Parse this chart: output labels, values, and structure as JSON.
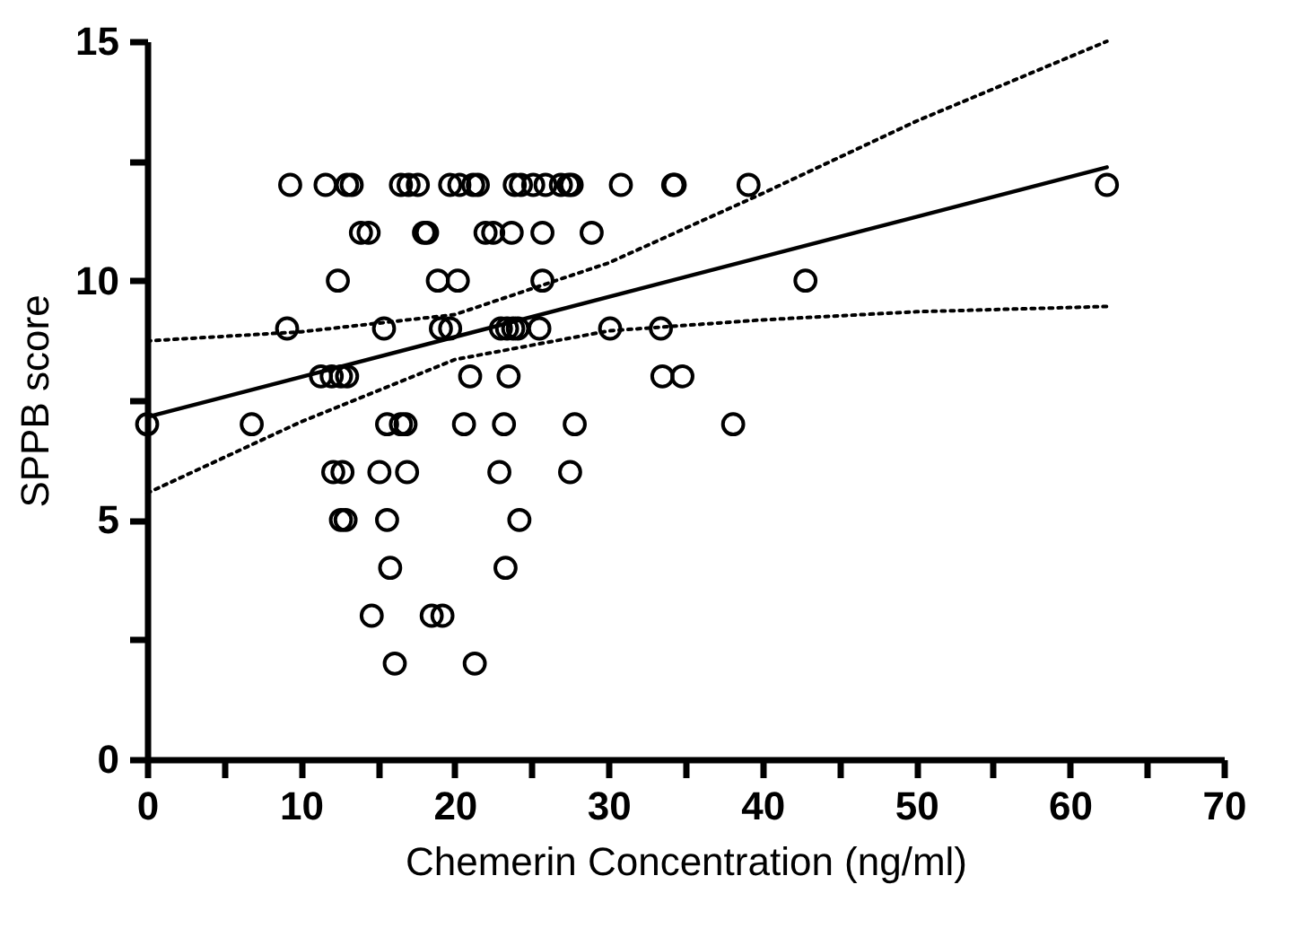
{
  "chart_data": {
    "type": "scatter",
    "xlabel": "Chemerin Concentration (ng/ml)",
    "ylabel": "SPPB score",
    "xlim": [
      0,
      70
    ],
    "ylim": [
      0,
      15
    ],
    "xticks": [
      0,
      {
        "value": 5,
        "label": null
      },
      10,
      {
        "value": 15,
        "label": null
      },
      20,
      {
        "value": 25,
        "label": null
      },
      30,
      {
        "value": 35,
        "label": null
      },
      40,
      {
        "value": 45,
        "label": null
      },
      50,
      {
        "value": 55,
        "label": null
      },
      60,
      {
        "value": 65,
        "label": null
      },
      70
    ],
    "yticks": [
      0,
      {
        "value": 2.5,
        "label": null
      },
      5,
      {
        "value": 7.5,
        "label": null
      },
      10,
      {
        "value": 12.5,
        "label": null
      },
      15
    ],
    "grid": false,
    "series": [
      {
        "marker": "circle",
        "color": "#000000",
        "x": [
          9.3,
          11.6,
          13.0,
          13.3,
          16.5,
          17.0,
          17.6,
          19.7,
          20.3,
          21.2,
          21.5,
          23.9,
          24.3,
          25.1,
          25.9,
          26.9,
          27.4,
          27.6,
          30.8,
          34.2,
          34.3,
          39.1,
          62.4,
          13.9,
          14.4,
          18.0,
          18.2,
          22.0,
          22.5,
          23.7,
          25.7,
          28.9,
          12.4,
          18.9,
          20.2,
          25.7,
          42.8,
          9.1,
          15.4,
          19.1,
          19.7,
          23.0,
          23.4,
          23.8,
          24.1,
          25.5,
          30.1,
          33.4,
          11.3,
          12.0,
          12.6,
          13.0,
          21.0,
          23.5,
          33.5,
          34.8,
          0,
          6.8,
          15.6,
          16.5,
          16.8,
          20.6,
          23.2,
          27.8,
          38.1,
          12.1,
          12.7,
          15.1,
          16.9,
          22.9,
          27.5,
          12.6,
          12.9,
          15.6,
          24.2,
          15.8,
          23.3,
          14.6,
          18.5,
          19.2,
          16.1,
          21.3
        ],
        "values": [
          12,
          12,
          12,
          12,
          12,
          12,
          12,
          12,
          12,
          12,
          12,
          12,
          12,
          12,
          12,
          12,
          12,
          12,
          12,
          12,
          12,
          12,
          12,
          11,
          11,
          11,
          11,
          11,
          11,
          11,
          11,
          11,
          10,
          10,
          10,
          10,
          10,
          9,
          9,
          9,
          9,
          9,
          9,
          9,
          9,
          9,
          9,
          9,
          8,
          8,
          8,
          8,
          8,
          8,
          8,
          8,
          7,
          7,
          7,
          7,
          7,
          7,
          7,
          7,
          7,
          6,
          6,
          6,
          6,
          6,
          6,
          5,
          5,
          5,
          5,
          4,
          4,
          3,
          3,
          3,
          2,
          2
        ]
      },
      {
        "type": "line",
        "color": "#000000",
        "line_style": "solid",
        "x": [
          0,
          62.4
        ],
        "values": [
          7.15,
          12.37
        ]
      },
      {
        "type": "line",
        "color": "#000000",
        "line_style": "dotted",
        "x": [
          0,
          10,
          20,
          30,
          40,
          50,
          62.4
        ],
        "values": [
          8.74,
          8.93,
          9.29,
          10.37,
          11.82,
          13.33,
          15.0
        ]
      },
      {
        "type": "line",
        "color": "#000000",
        "line_style": "dotted",
        "x": [
          0,
          10,
          20,
          30,
          40,
          50,
          62.4
        ],
        "values": [
          5.56,
          7.05,
          8.35,
          8.95,
          9.18,
          9.35,
          9.46
        ]
      }
    ]
  }
}
